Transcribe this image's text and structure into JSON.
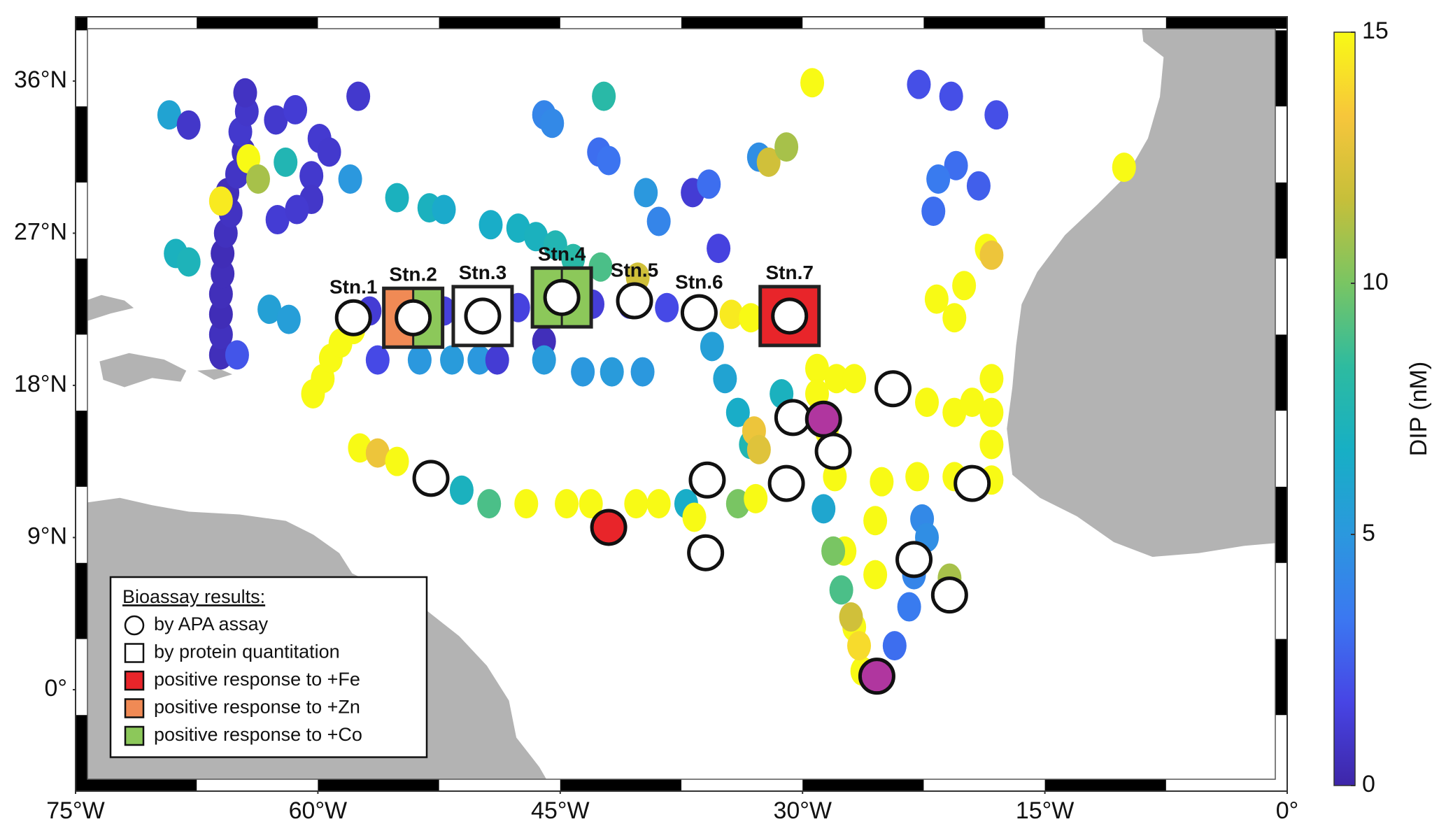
{
  "chart_data": {
    "type": "scatter",
    "xlim": [
      -75,
      0
    ],
    "ylim": [
      -6,
      39.8
    ],
    "xticks": [
      {
        "value": -75,
        "label": "75°W"
      },
      {
        "value": -60,
        "label": "60°W"
      },
      {
        "value": -45,
        "label": "45°W"
      },
      {
        "value": -30,
        "label": "30°W"
      },
      {
        "value": -15,
        "label": "15°W"
      },
      {
        "value": 0,
        "label": "0°"
      }
    ],
    "yticks": [
      {
        "value": 0,
        "label": "0°"
      },
      {
        "value": 9,
        "label": "9°N"
      },
      {
        "value": 18,
        "label": "18°N"
      },
      {
        "value": 27,
        "label": "27°N"
      },
      {
        "value": 36,
        "label": "36°N"
      }
    ],
    "colorbar": {
      "label": "DIP (nM)",
      "clim": [
        0,
        15
      ],
      "ticks": [
        0,
        5,
        10,
        15
      ],
      "colormap": [
        "#3e26a8",
        "#4745e5",
        "#3b78f1",
        "#2b98de",
        "#17afc5",
        "#2dbba0",
        "#79c563",
        "#c6bf3a",
        "#f7c63b",
        "#f8fa15"
      ]
    },
    "points": {
      "lon": [
        -66.0,
        -66.0,
        -66.0,
        -66.0,
        -65.9,
        -65.9,
        -65.7,
        -65.4,
        -65.6,
        -65.0,
        -64.6,
        -64.8,
        -64.4,
        -64.5,
        -65.0,
        -69.2,
        -68.0,
        -62.6,
        -61.4,
        -57.5,
        -59.9,
        -59.3,
        -60.4,
        -60.4,
        -58.0,
        -62.0,
        -64.3,
        -63.7,
        -66.0,
        -62.5,
        -61.3,
        -68.8,
        -68.0,
        -63.0,
        -61.8,
        -56.8,
        -54.5,
        -52.2,
        -49.9,
        -47.6,
        -45.3,
        -43.0,
        -40.7,
        -38.4,
        -36.1,
        -34.4,
        -33.2,
        -31.5,
        -29.8,
        -56.3,
        -53.7,
        -51.7,
        -50.0,
        -48.9,
        -46.0,
        -46.0,
        -43.6,
        -41.8,
        -39.9,
        -60.3,
        -59.7,
        -59.2,
        -58.6,
        -57.8,
        -55.1,
        -53.1,
        -52.2,
        -49.3,
        -47.6,
        -46.5,
        -45.3,
        -44.2,
        -42.5,
        -40.2,
        -46.0,
        -45.5,
        -42.3,
        -42.6,
        -42.0,
        -39.7,
        -38.9,
        -36.8,
        -35.2,
        -35.8,
        -32.7,
        -32.1,
        -31.0,
        -29.4,
        -22.8,
        -20.8,
        -18.0,
        -20.5,
        -21.6,
        -21.9,
        -19.1,
        -10.1,
        -18.6,
        -20.0,
        -21.7,
        -20.6,
        -18.3,
        -29.1,
        -27.9,
        -26.8,
        -29.1,
        -28.5,
        -28.0,
        -27.4,
        -26.8,
        -26.3,
        -18.3,
        -18.3,
        -18.3,
        -18.3,
        -20.6,
        -22.9,
        -25.1,
        -25.5,
        -25.5,
        -22.3,
        -20.6,
        -19.5,
        -35.6,
        -34.8,
        -34.0,
        -33.2,
        -31.3,
        -33.0,
        -32.7,
        -28.7,
        -28.1,
        -27.6,
        -27.0,
        -26.5,
        -22.6,
        -22.3,
        -23.1,
        -23.4,
        -24.3,
        -20.9,
        -57.4,
        -56.3,
        -55.1,
        -51.1,
        -49.4,
        -47.1,
        -44.6,
        -43.1,
        -40.3,
        -38.9,
        -37.2,
        -34.0,
        -32.9,
        -36.7
      ],
      "lat": [
        19.8,
        21.0,
        22.2,
        23.4,
        24.6,
        25.8,
        27.0,
        28.2,
        29.4,
        30.5,
        31.8,
        33.0,
        34.2,
        35.3,
        19.8,
        34.0,
        33.4,
        33.7,
        34.3,
        35.1,
        32.6,
        31.8,
        30.4,
        29.0,
        30.2,
        31.2,
        31.4,
        30.2,
        28.9,
        27.8,
        28.4,
        25.8,
        25.3,
        22.5,
        21.9,
        22.4,
        22.4,
        22.4,
        22.4,
        22.6,
        22.8,
        22.8,
        22.8,
        22.6,
        22.4,
        22.2,
        22.0,
        22.0,
        22.2,
        19.5,
        19.5,
        19.5,
        19.5,
        19.5,
        20.6,
        19.5,
        18.8,
        18.8,
        18.8,
        17.5,
        18.4,
        19.6,
        20.5,
        21.3,
        29.1,
        28.5,
        28.4,
        27.5,
        27.3,
        26.8,
        26.3,
        25.5,
        25.0,
        24.4,
        34.0,
        33.5,
        35.1,
        31.8,
        31.3,
        29.4,
        27.7,
        29.4,
        26.1,
        29.9,
        31.5,
        31.2,
        32.1,
        35.9,
        35.8,
        35.1,
        34.0,
        31.0,
        30.2,
        28.3,
        29.8,
        30.9,
        26.1,
        23.9,
        23.1,
        22.0,
        25.7,
        19.0,
        18.4,
        18.4,
        17.5,
        15.3,
        12.6,
        8.2,
        3.7,
        1.1,
        18.4,
        16.4,
        14.5,
        12.4,
        12.6,
        12.6,
        12.3,
        10.0,
        6.8,
        17.0,
        16.4,
        17.0,
        20.3,
        18.4,
        16.4,
        14.5,
        17.5,
        15.3,
        14.2,
        10.7,
        8.2,
        5.9,
        4.3,
        2.6,
        10.1,
        9.0,
        6.8,
        4.9,
        2.6,
        6.6,
        14.3,
        14.0,
        13.5,
        11.8,
        11.0,
        11.0,
        11.0,
        11.0,
        11.0,
        11.0,
        11.0,
        11.0,
        11.3,
        10.2
      ],
      "dip": [
        0.5,
        0.6,
        0.4,
        0.5,
        0.5,
        0.4,
        0.6,
        0.7,
        0.5,
        0.8,
        0.6,
        1.0,
        0.9,
        0.7,
        2.2,
        5.8,
        0.9,
        1.0,
        1.2,
        1.0,
        1.1,
        1.0,
        1.0,
        0.9,
        5.0,
        7.5,
        15,
        11,
        14.5,
        1.2,
        1.1,
        7.0,
        7.2,
        5.6,
        5.4,
        1.2,
        1.0,
        1.4,
        1.1,
        1.5,
        1.8,
        1.3,
        1.2,
        1.8,
        2.0,
        14.5,
        15,
        14,
        15,
        1.8,
        5.0,
        5.2,
        5.0,
        1.2,
        0.5,
        5.2,
        5.0,
        5.2,
        5.0,
        15,
        15,
        15,
        15,
        15,
        7.0,
        7.0,
        6.3,
        6.5,
        6.8,
        7.0,
        7.5,
        8.0,
        9.0,
        12.0,
        4.0,
        4.2,
        8.0,
        3.0,
        3.2,
        5.0,
        4.0,
        1.2,
        1.5,
        3.0,
        4.5,
        12.0,
        11.0,
        15,
        2.0,
        2.0,
        2.0,
        3.0,
        3.5,
        3.0,
        2.5,
        15,
        15,
        15,
        15,
        15,
        13,
        15,
        15,
        15,
        15,
        15,
        15,
        15,
        15,
        15,
        15,
        15,
        15,
        15,
        15,
        15,
        15,
        15,
        15,
        15,
        15,
        15,
        5.5,
        5.8,
        6.5,
        7.5,
        7.0,
        13.0,
        12.5,
        6.0,
        10.0,
        9.0,
        12.0,
        14.0,
        4.2,
        4.5,
        4.0,
        3.5,
        3.0,
        11,
        15,
        13,
        15,
        7.0,
        9.0,
        15,
        15,
        15,
        15,
        15,
        6.5,
        10.0,
        15,
        15
      ]
    },
    "sites": [
      {
        "label": "Stn.1",
        "lon": -57.8,
        "lat": 22.0,
        "circle": "#ffffff"
      },
      {
        "label": "Stn.2",
        "lon": -54.1,
        "lat": 22.0,
        "square": [
          "#f08a55",
          "#8cc85a"
        ],
        "circle": "#ffffff"
      },
      {
        "label": "Stn.3",
        "lon": -49.8,
        "lat": 22.1,
        "square": [
          "#ffffff"
        ],
        "circle": "#ffffff"
      },
      {
        "label": "Stn.4",
        "lon": -44.9,
        "lat": 23.2,
        "square": [
          "#8cc85a",
          "#8cc85a"
        ],
        "circle": "#ffffff"
      },
      {
        "label": "Stn.5",
        "lon": -40.4,
        "lat": 23.0,
        "circle": "#ffffff"
      },
      {
        "label": "Stn.6",
        "lon": -36.4,
        "lat": 22.3,
        "circle": "#ffffff"
      },
      {
        "label": "Stn.7",
        "lon": -30.8,
        "lat": 22.1,
        "square": [
          "#e8252a"
        ],
        "circle": "#ffffff"
      },
      {
        "lon": -24.4,
        "lat": 17.8,
        "circle": "#ffffff"
      },
      {
        "lon": -30.6,
        "lat": 16.1,
        "circle": "#ffffff"
      },
      {
        "lon": -28.1,
        "lat": 14.1,
        "circle": "#ffffff"
      },
      {
        "lon": -53.0,
        "lat": 12.5,
        "circle": "#ffffff"
      },
      {
        "lon": -35.9,
        "lat": 12.4,
        "circle": "#ffffff"
      },
      {
        "lon": -31.0,
        "lat": 12.2,
        "circle": "#ffffff"
      },
      {
        "lon": -19.5,
        "lat": 12.2,
        "circle": "#ffffff"
      },
      {
        "lon": -36.0,
        "lat": 8.1,
        "circle": "#ffffff"
      },
      {
        "lon": -23.1,
        "lat": 7.7,
        "circle": "#ffffff"
      },
      {
        "lon": -20.9,
        "lat": 5.6,
        "circle": "#ffffff"
      },
      {
        "lon": -28.7,
        "lat": 16.0,
        "circle": "#b0369f"
      },
      {
        "lon": -25.4,
        "lat": 0.8,
        "circle": "#b0369f"
      },
      {
        "lon": -42.0,
        "lat": 9.6,
        "circle": "#e8252a"
      }
    ],
    "legend": {
      "corner": "lower left",
      "title": "Bioassay results:",
      "items": [
        {
          "label": "by APA assay",
          "shape": "circle",
          "color": "#ffffff"
        },
        {
          "label": "by protein quantitation",
          "shape": "square",
          "color": "#ffffff"
        },
        {
          "label": "positive response to +Fe",
          "shape": "square",
          "color": "#e8252a"
        },
        {
          "label": "positive response to +Zn",
          "shape": "square",
          "color": "#f08a55"
        },
        {
          "label": "positive response to +Co",
          "shape": "square",
          "color": "#8cc85a"
        }
      ]
    }
  }
}
